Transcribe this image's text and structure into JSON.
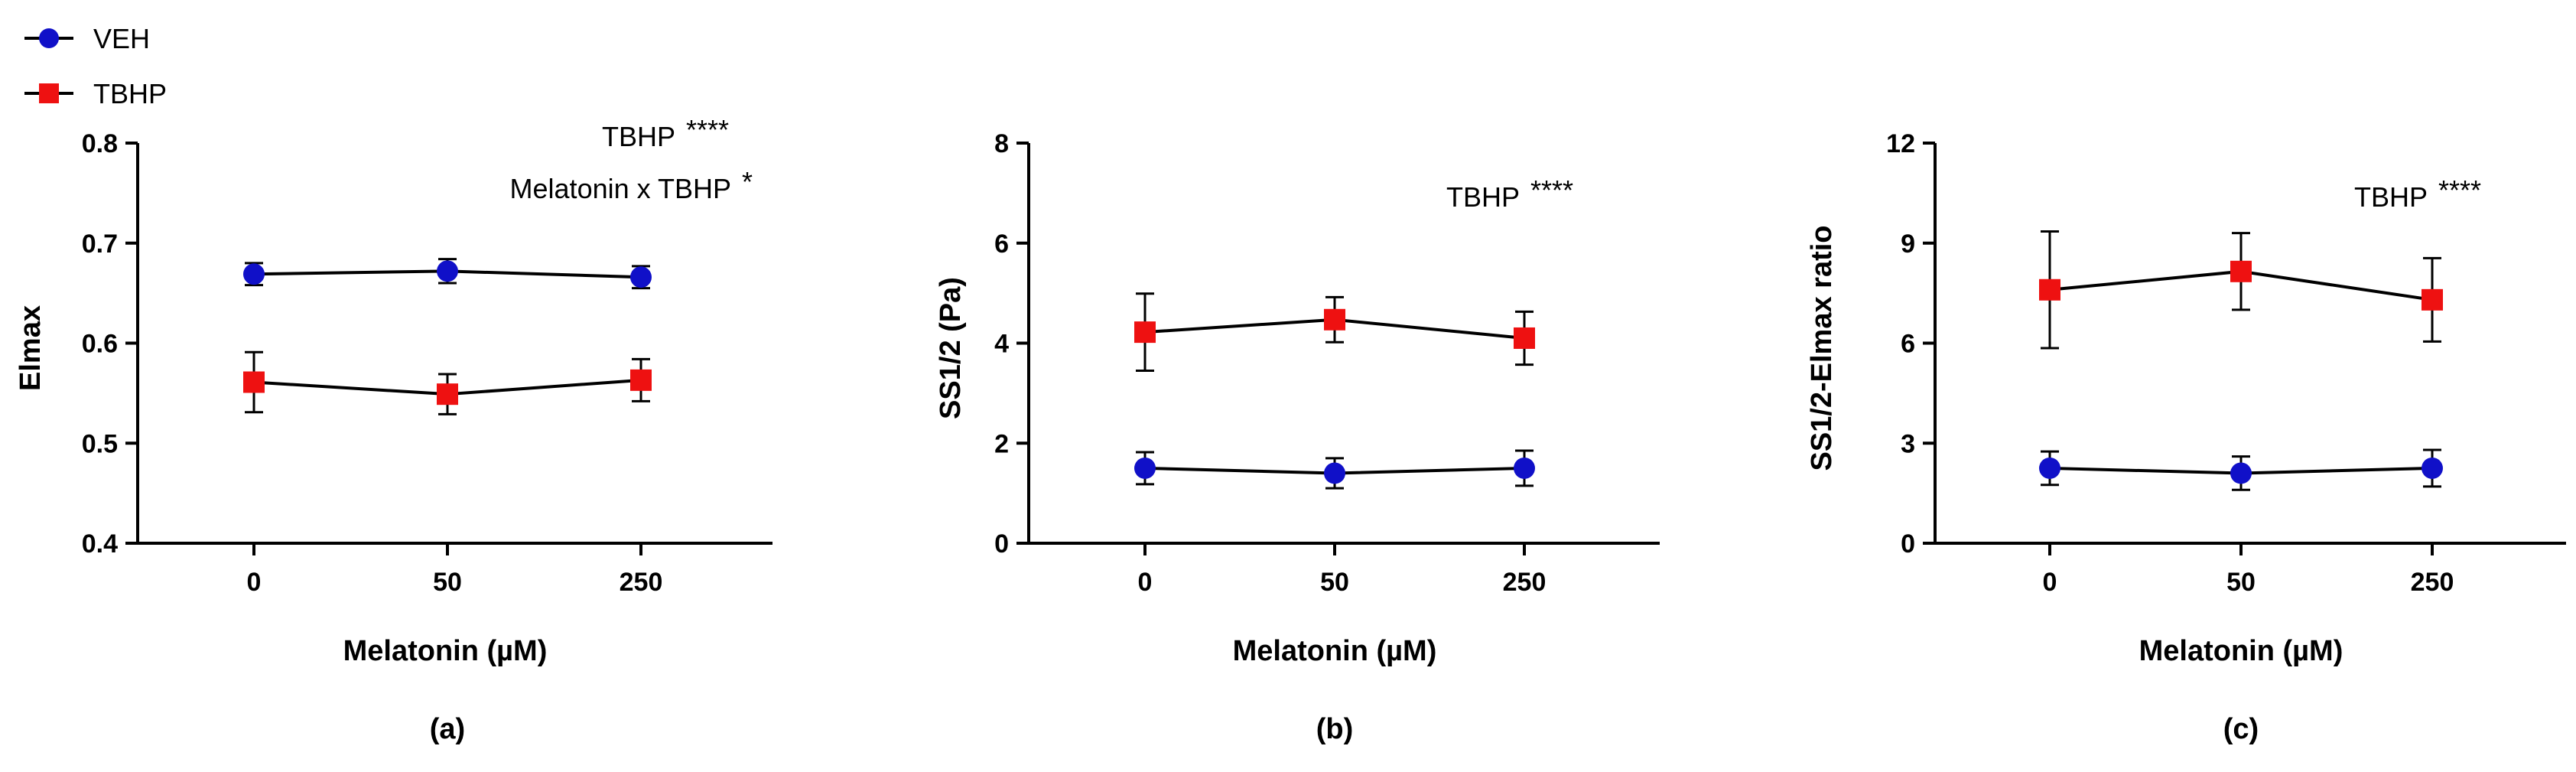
{
  "legend": [
    {
      "name": "VEH",
      "color": "#1010c8",
      "marker": "circle"
    },
    {
      "name": "TBHP",
      "color": "#ee1111",
      "marker": "square"
    }
  ],
  "chart_data": [
    {
      "type": "line",
      "panel_label": "(a)",
      "xlabel": "Melatonin (µM)",
      "ylabel": "Elmax",
      "categories": [
        "0",
        "50",
        "250"
      ],
      "ylim": [
        0.4,
        0.8
      ],
      "yticks": [
        "0.4",
        "0.5",
        "0.6",
        "0.7",
        "0.8"
      ],
      "annotations": [
        {
          "text": "TBHP",
          "stars": "****"
        },
        {
          "text": "Melatonin x TBHP",
          "stars": "*"
        }
      ],
      "series": [
        {
          "name": "VEH",
          "values": [
            0.669,
            0.672,
            0.666
          ],
          "errors": [
            0.011,
            0.012,
            0.011
          ]
        },
        {
          "name": "TBHP",
          "values": [
            0.561,
            0.549,
            0.563
          ],
          "errors": [
            0.03,
            0.02,
            0.021
          ]
        }
      ]
    },
    {
      "type": "line",
      "panel_label": "(b)",
      "xlabel": "Melatonin (µM)",
      "ylabel": "SS1/2 (Pa)",
      "categories": [
        "0",
        "50",
        "250"
      ],
      "ylim": [
        0,
        8
      ],
      "yticks": [
        "0",
        "2",
        "4",
        "6",
        "8"
      ],
      "annotations": [
        {
          "text": "TBHP",
          "stars": "****"
        }
      ],
      "series": [
        {
          "name": "VEH",
          "values": [
            1.5,
            1.4,
            1.5
          ],
          "errors": [
            0.32,
            0.3,
            0.35
          ]
        },
        {
          "name": "TBHP",
          "values": [
            4.22,
            4.47,
            4.1
          ],
          "errors": [
            0.77,
            0.45,
            0.53
          ]
        }
      ]
    },
    {
      "type": "line",
      "panel_label": "(c)",
      "xlabel": "Melatonin (µM)",
      "ylabel": "SS1/2-Elmax ratio",
      "categories": [
        "0",
        "50",
        "250"
      ],
      "ylim": [
        0,
        12
      ],
      "yticks": [
        "0",
        "3",
        "6",
        "9",
        "12"
      ],
      "annotations": [
        {
          "text": "TBHP",
          "stars": "****"
        }
      ],
      "series": [
        {
          "name": "VEH",
          "values": [
            2.25,
            2.1,
            2.25
          ],
          "errors": [
            0.5,
            0.5,
            0.55
          ]
        },
        {
          "name": "TBHP",
          "values": [
            7.6,
            8.15,
            7.3
          ],
          "errors": [
            1.75,
            1.15,
            1.25
          ]
        }
      ]
    }
  ]
}
